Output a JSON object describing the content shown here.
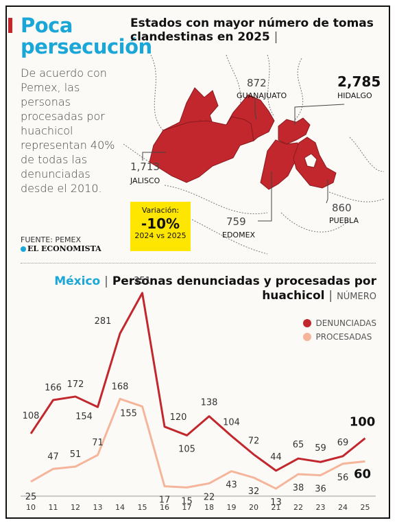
{
  "header": {
    "headline_line1": "Poca",
    "headline_line2": "persecución",
    "body": "De acuerdo con Pemex, las personas procesadas por huachicol representan 40% de todas las denunciadas desde el 2010.",
    "source": "FUENTE: PEMEX",
    "brand": "EL ECONOMISTA"
  },
  "colors": {
    "accent": "#1aa6d6",
    "map_fill": "#c1272d",
    "denunciadas": "#c1272d",
    "procesadas": "#f5b59a",
    "highlight": "#ffe600"
  },
  "map": {
    "title": "Estados con mayor número de tomas clandestinas en 2025",
    "states": [
      {
        "name": "HIDALGO",
        "value": "2,785"
      },
      {
        "name": "JALISCO",
        "value": "1,713"
      },
      {
        "name": "GUANAJUATO",
        "value": "872"
      },
      {
        "name": "PUEBLA",
        "value": "860"
      },
      {
        "name": "EDOMEX",
        "value": "759"
      }
    ],
    "variation": {
      "label": "Variación:",
      "value": "-10%",
      "period": "2024 vs 2025"
    }
  },
  "chart_data": {
    "type": "line",
    "title_region": "México",
    "title": "Personas denunciadas y procesadas por huachicol",
    "unit": "NÚMERO",
    "categories": [
      "10",
      "11",
      "12",
      "13",
      "14",
      "15",
      "16",
      "17",
      "18",
      "19",
      "20",
      "21",
      "22",
      "23",
      "24",
      "25"
    ],
    "series": [
      {
        "name": "DENUNCIADAS",
        "values": [
          108,
          166,
          172,
          154,
          281,
          351,
          120,
          105,
          138,
          104,
          72,
          44,
          65,
          59,
          69,
          100
        ]
      },
      {
        "name": "PROCESADAS",
        "values": [
          25,
          47,
          51,
          71,
          168,
          155,
          17,
          15,
          22,
          43,
          32,
          13,
          38,
          36,
          56,
          60
        ]
      }
    ],
    "ylim": [
      0,
      360
    ],
    "legend_position": "top-right",
    "grid": false
  }
}
